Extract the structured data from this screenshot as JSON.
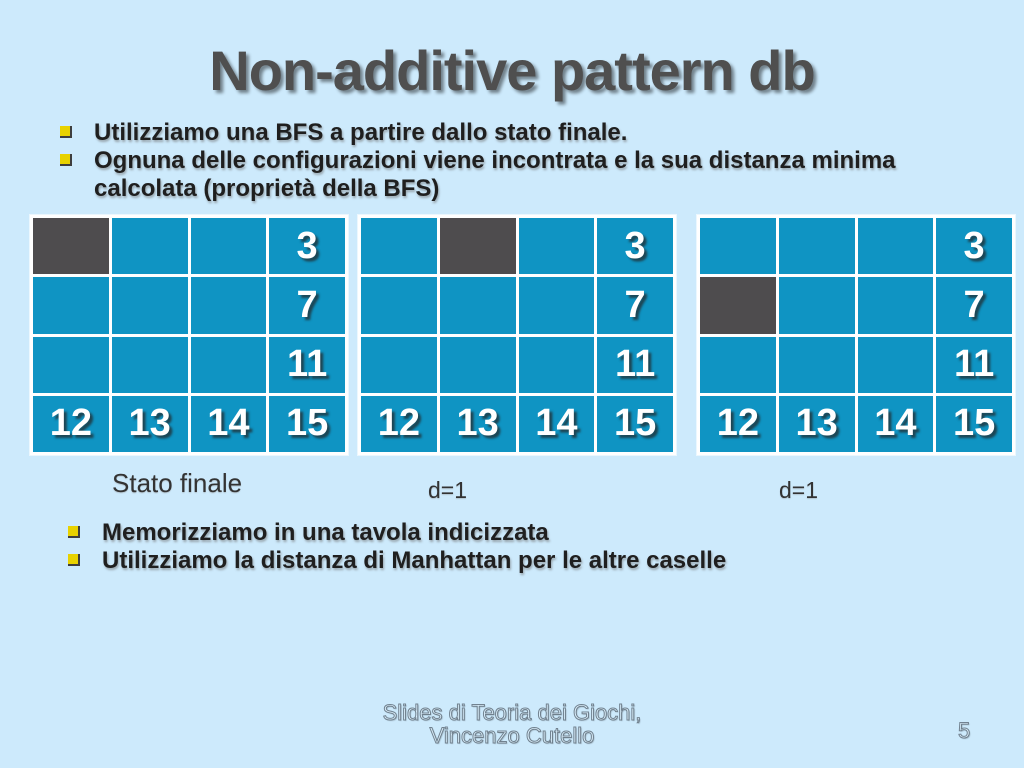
{
  "slide": {
    "title": "Non-additive pattern db",
    "bullets_top": [
      "Utilizziamo una BFS a partire dallo stato finale.",
      "Ognuna delle configurazioni viene incontrata e la sua distanza minima calcolata (proprietà della BFS)"
    ],
    "bullets_bottom": [
      "Memorizziamo in una tavola indicizzata",
      "Utilizziamo la distanza di Manhattan per le altre caselle"
    ],
    "grids": [
      {
        "label": "Stato finale",
        "cells": [
          "#",
          "",
          "",
          "3",
          "",
          "",
          "",
          "7",
          "",
          "",
          "",
          "11",
          "12",
          "13",
          "14",
          "15"
        ]
      },
      {
        "label": "d=1",
        "cells": [
          "",
          "#",
          "",
          "3",
          "",
          "",
          "",
          "7",
          "",
          "",
          "",
          "11",
          "12",
          "13",
          "14",
          "15"
        ]
      },
      {
        "label": "d=1",
        "cells": [
          "",
          "",
          "",
          "3",
          "#",
          "",
          "",
          "7",
          "",
          "",
          "",
          "11",
          "12",
          "13",
          "14",
          "15"
        ]
      }
    ],
    "footer": {
      "line1": "Slides di Teoria dei Giochi,",
      "line2": "Vincenzo Cutello",
      "page_number": "5"
    }
  },
  "colors": {
    "bg": "#cdeafc",
    "tile": "#0f94c3",
    "dark-tile": "#4e4c4e",
    "bullet": "#e8d200",
    "title": "#4f4f4f",
    "body": "#1f1f1f",
    "label": "#333333",
    "emboss": "#d9eefb"
  }
}
